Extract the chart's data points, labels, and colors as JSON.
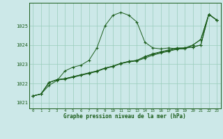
{
  "title": "Graphe pression niveau de la mer (hPa)",
  "bg_color": "#cce8e8",
  "plot_bg_color": "#cce8e8",
  "grid_color": "#99ccbb",
  "line_color": "#1a5c1a",
  "xlim": [
    -0.5,
    23.5
  ],
  "ylim": [
    1020.7,
    1026.2
  ],
  "xticks": [
    0,
    1,
    2,
    3,
    4,
    5,
    6,
    7,
    8,
    9,
    10,
    11,
    12,
    13,
    14,
    15,
    16,
    17,
    18,
    19,
    20,
    21,
    22,
    23
  ],
  "yticks": [
    1021,
    1022,
    1023,
    1024,
    1025
  ],
  "series1_x": [
    0,
    1,
    2,
    3,
    4,
    5,
    6,
    7,
    8,
    9,
    10,
    11,
    12,
    13,
    14,
    15,
    16,
    17,
    18,
    19,
    20,
    21,
    22,
    23
  ],
  "series1_y": [
    1021.35,
    1021.45,
    1021.9,
    1022.15,
    1022.65,
    1022.85,
    1022.95,
    1023.2,
    1023.85,
    1025.0,
    1025.55,
    1025.7,
    1025.55,
    1025.2,
    1024.15,
    1023.85,
    1023.8,
    1023.85,
    1023.8,
    1023.8,
    1024.0,
    1024.3,
    1025.6,
    1025.3
  ],
  "series2_x": [
    0,
    1,
    2,
    3,
    4,
    5,
    6,
    7,
    8,
    9,
    10,
    11,
    12,
    13,
    14,
    15,
    16,
    17,
    18,
    19,
    20,
    21,
    22,
    23
  ],
  "series2_y": [
    1021.35,
    1021.45,
    1022.05,
    1022.2,
    1022.25,
    1022.35,
    1022.45,
    1022.55,
    1022.65,
    1022.8,
    1022.9,
    1023.05,
    1023.15,
    1023.2,
    1023.4,
    1023.55,
    1023.65,
    1023.75,
    1023.85,
    1023.85,
    1023.9,
    1024.0,
    1025.6,
    1025.3
  ],
  "series3_x": [
    0,
    1,
    2,
    3,
    4,
    5,
    6,
    7,
    8,
    9,
    10,
    11,
    12,
    13,
    14,
    15,
    16,
    17,
    18,
    19,
    20,
    21,
    22,
    23
  ],
  "series3_y": [
    1021.35,
    1021.45,
    1022.05,
    1022.2,
    1022.25,
    1022.35,
    1022.45,
    1022.55,
    1022.65,
    1022.8,
    1022.9,
    1023.05,
    1023.15,
    1023.2,
    1023.38,
    1023.52,
    1023.62,
    1023.72,
    1023.82,
    1023.85,
    1024.0,
    1024.28,
    1025.6,
    1025.3
  ],
  "series4_x": [
    0,
    1,
    2,
    3,
    4,
    5,
    6,
    7,
    8,
    9,
    10,
    11,
    12,
    13,
    14,
    15,
    16,
    17,
    18,
    19,
    20,
    21,
    22,
    23
  ],
  "series4_y": [
    1021.35,
    1021.45,
    1022.05,
    1022.18,
    1022.22,
    1022.32,
    1022.42,
    1022.52,
    1022.62,
    1022.78,
    1022.88,
    1023.03,
    1023.12,
    1023.17,
    1023.32,
    1023.47,
    1023.58,
    1023.68,
    1023.78,
    1023.83,
    1023.9,
    1024.0,
    1025.6,
    1025.3
  ]
}
